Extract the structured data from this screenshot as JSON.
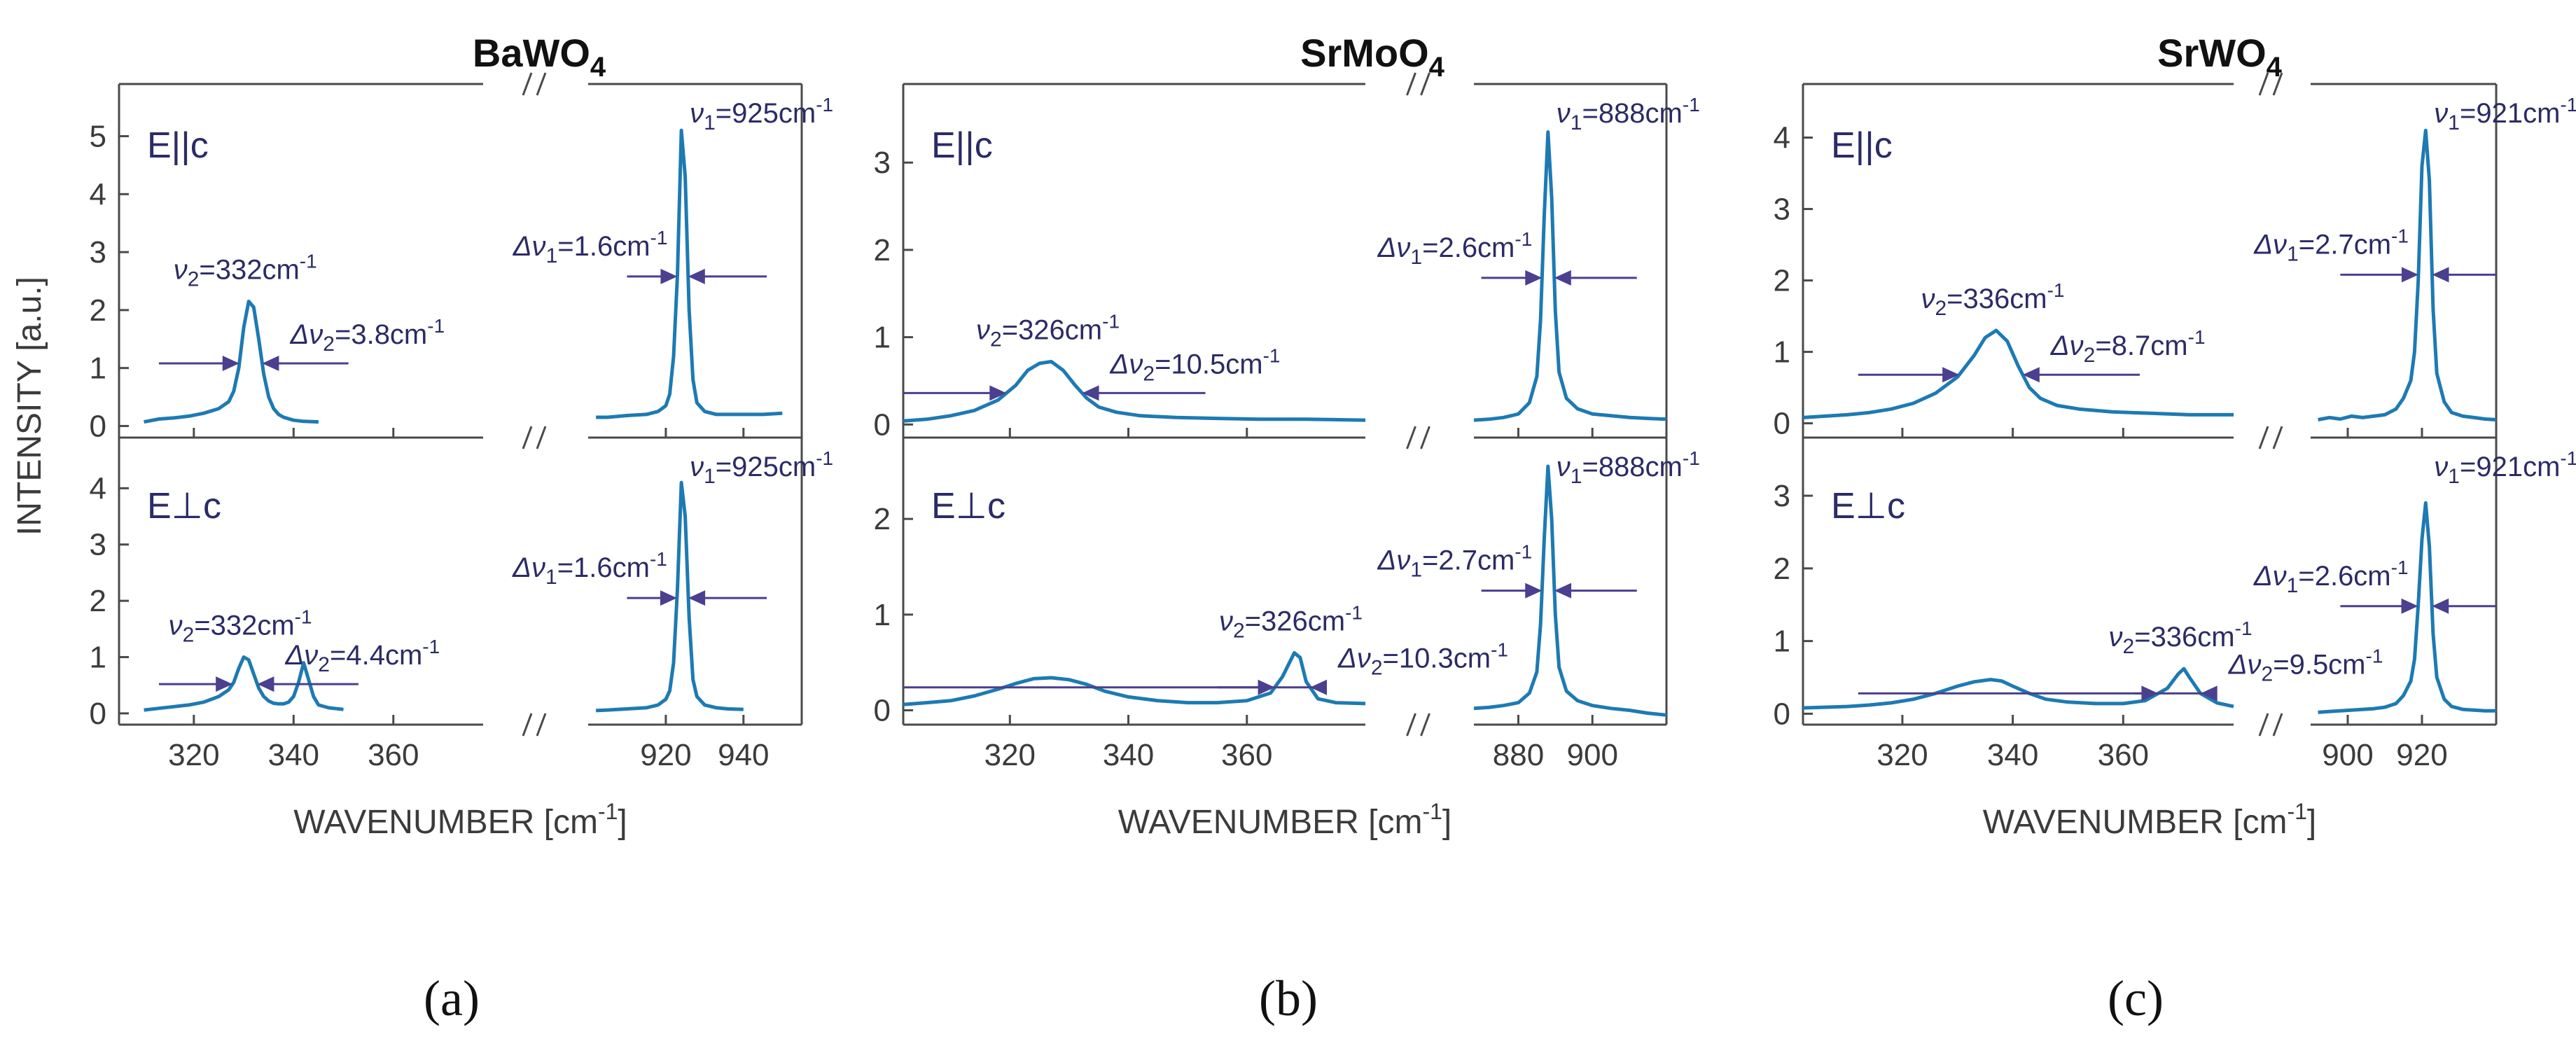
{
  "figure": {
    "ylabel": "INTENSITY [a.u.]",
    "xlabel": "WAVENUMBER [cm",
    "xlabel_sup": "-1",
    "xlabel_end": "]"
  },
  "colors": {
    "curve": "#1d7ab3",
    "annotation": "#2b2b66",
    "arrow": "#4b3f8f"
  },
  "chart_data": [
    {
      "type": "line",
      "panel_label": "(a)",
      "title": "BaWO",
      "title_sub": "4",
      "xlabel": "WAVENUMBER [cm-1]",
      "ylabel": "INTENSITY [a.u.]",
      "left_xlim": [
        305,
        378
      ],
      "left_xticks": [
        "320",
        "340",
        "360"
      ],
      "right_xlim": [
        900,
        955
      ],
      "right_xticks": [
        "920",
        "940"
      ],
      "rows": [
        {
          "polarization": "E||c",
          "ylim": [
            -0.2,
            5.9
          ],
          "yticks": [
            "0",
            "1",
            "2",
            "3",
            "4",
            "5"
          ],
          "left": {
            "peak_label": "ν2=332cm-1",
            "fwhm_label": "Δν2=3.8cm-1",
            "fwhm_level": 1.08,
            "arrow_span": [
              313,
              351
            ],
            "x": [
              310,
              313,
              316,
              319,
              322,
              325,
              327,
              328,
              329,
              330,
              331,
              332,
              333,
              334,
              335,
              336,
              337,
              338,
              340,
              342,
              345
            ],
            "y": [
              0.07,
              0.12,
              0.14,
              0.17,
              0.22,
              0.3,
              0.42,
              0.6,
              1.0,
              1.7,
              2.15,
              2.05,
              1.5,
              0.9,
              0.5,
              0.3,
              0.2,
              0.15,
              0.1,
              0.08,
              0.07
            ]
          },
          "right": {
            "peak_label": "ν1=925cm-1",
            "fwhm_label": "Δν1=1.6cm-1",
            "fwhm_level": 2.58,
            "arrow_span": [
              910,
              946
            ],
            "x": [
              902,
              905,
              910,
              915,
              918,
              920,
              921,
              922,
              923,
              924,
              925,
              926,
              927,
              928,
              930,
              933,
              936,
              940,
              945,
              950
            ],
            "y": [
              0.15,
              0.15,
              0.18,
              0.2,
              0.25,
              0.35,
              0.55,
              1.2,
              2.6,
              5.1,
              4.3,
              2.0,
              0.8,
              0.4,
              0.25,
              0.2,
              0.2,
              0.2,
              0.2,
              0.22
            ]
          }
        },
        {
          "polarization": "E⊥c",
          "ylim": [
            -0.2,
            4.9
          ],
          "yticks": [
            "0",
            "1",
            "2",
            "3",
            "4"
          ],
          "left": {
            "peak_label": "ν2=332cm-1",
            "fwhm_label": "Δν2=4.4cm-1",
            "fwhm_level": 0.52,
            "arrow_span": [
              313,
              353
            ],
            "x": [
              310,
              313,
              316,
              319,
              322,
              325,
              327,
              328,
              329,
              330,
              331,
              332,
              333,
              334,
              335,
              336,
              337,
              338,
              339,
              340,
              341,
              342,
              343,
              344,
              345,
              347,
              350
            ],
            "y": [
              0.06,
              0.09,
              0.12,
              0.15,
              0.2,
              0.3,
              0.42,
              0.55,
              0.8,
              1.0,
              0.95,
              0.7,
              0.45,
              0.3,
              0.22,
              0.18,
              0.17,
              0.17,
              0.2,
              0.3,
              0.55,
              0.9,
              0.6,
              0.3,
              0.15,
              0.1,
              0.07
            ]
          },
          "right": {
            "peak_label": "ν1=925cm-1",
            "fwhm_label": "Δν1=1.6cm-1",
            "fwhm_level": 2.05,
            "arrow_span": [
              910,
              946
            ],
            "x": [
              902,
              905,
              910,
              915,
              918,
              920,
              921,
              922,
              923,
              924,
              925,
              926,
              927,
              928,
              930,
              933,
              936,
              940
            ],
            "y": [
              0.05,
              0.06,
              0.08,
              0.1,
              0.15,
              0.25,
              0.4,
              0.9,
              2.2,
              4.1,
              3.5,
              1.7,
              0.6,
              0.3,
              0.15,
              0.1,
              0.08,
              0.07
            ]
          }
        }
      ]
    },
    {
      "type": "line",
      "panel_label": "(b)",
      "title": "SrMoO",
      "title_sub": "4",
      "xlabel": "WAVENUMBER [cm-1]",
      "ylabel": "",
      "left_xlim": [
        302,
        380
      ],
      "left_xticks": [
        "320",
        "340",
        "360"
      ],
      "right_xlim": [
        868,
        920
      ],
      "right_xticks": [
        "880",
        "900"
      ],
      "rows": [
        {
          "polarization": "E||c",
          "ylim": [
            -0.15,
            3.9
          ],
          "yticks": [
            "0",
            "1",
            "2",
            "3"
          ],
          "left": {
            "peak_label": "ν2=326cm-1",
            "fwhm_label": "Δν2=10.5cm-1",
            "fwhm_level": 0.36,
            "arrow_span": [
              302,
              353
            ],
            "x": [
              302,
              306,
              310,
              314,
              318,
              321,
              323,
              325,
              327,
              329,
              331,
              333,
              335,
              338,
              342,
              348,
              355,
              362,
              370,
              380
            ],
            "y": [
              0.04,
              0.06,
              0.1,
              0.16,
              0.28,
              0.45,
              0.62,
              0.7,
              0.72,
              0.62,
              0.45,
              0.3,
              0.2,
              0.14,
              0.1,
              0.08,
              0.07,
              0.06,
              0.06,
              0.05
            ]
          },
          "right": {
            "peak_label": "ν1=888cm-1",
            "fwhm_label": "Δν1=2.6cm-1",
            "fwhm_level": 1.68,
            "arrow_span": [
              870,
              912
            ],
            "x": [
              868,
              872,
              876,
              880,
              883,
              885,
              886,
              887,
              888,
              889,
              890,
              891,
              893,
              896,
              900,
              905,
              910,
              915,
              920
            ],
            "y": [
              0.05,
              0.06,
              0.08,
              0.12,
              0.25,
              0.55,
              1.2,
              2.4,
              3.35,
              2.6,
              1.3,
              0.6,
              0.3,
              0.18,
              0.12,
              0.1,
              0.08,
              0.07,
              0.06
            ]
          }
        },
        {
          "polarization": "E⊥c",
          "ylim": [
            -0.15,
            2.85
          ],
          "yticks": [
            "0",
            "1",
            "2"
          ],
          "left": {
            "peak_label": "ν2=326cm-1",
            "fwhm_label": "Δν2=10.3cm-1",
            "fwhm_level": 0.24,
            "arrow_span": [
              302,
              355
            ],
            "x": [
              302,
              306,
              310,
              314,
              318,
              321,
              324,
              327,
              330,
              333,
              336,
              340,
              345,
              350,
              355,
              360,
              364,
              366,
              368,
              369,
              370,
              372,
              375,
              380
            ],
            "y": [
              0.06,
              0.08,
              0.1,
              0.15,
              0.22,
              0.28,
              0.33,
              0.34,
              0.32,
              0.27,
              0.2,
              0.14,
              0.1,
              0.08,
              0.08,
              0.1,
              0.18,
              0.35,
              0.6,
              0.55,
              0.3,
              0.12,
              0.08,
              0.07
            ]
          },
          "right": {
            "peak_label": "ν1=888cm-1",
            "fwhm_label": "Δν1=2.7cm-1",
            "fwhm_level": 1.25,
            "arrow_span": [
              870,
              912
            ],
            "x": [
              868,
              872,
              876,
              880,
              883,
              885,
              886,
              887,
              888,
              889,
              890,
              891,
              893,
              896,
              900,
              905,
              910,
              915,
              920
            ],
            "y": [
              0.02,
              0.03,
              0.05,
              0.08,
              0.18,
              0.4,
              0.9,
              1.8,
              2.55,
              2.0,
              1.0,
              0.45,
              0.2,
              0.1,
              0.05,
              0.02,
              0.0,
              -0.03,
              -0.05
            ]
          }
        }
      ]
    },
    {
      "type": "line",
      "panel_label": "(c)",
      "title": "SrWO",
      "title_sub": "4",
      "xlabel": "WAVENUMBER [cm-1]",
      "ylabel": "",
      "left_xlim": [
        302,
        380
      ],
      "left_xticks": [
        "320",
        "340",
        "360"
      ],
      "right_xlim": [
        890,
        940
      ],
      "right_xticks": [
        "900",
        "920"
      ],
      "rows": [
        {
          "polarization": "E||c",
          "ylim": [
            -0.2,
            4.75
          ],
          "yticks": [
            "0",
            "1",
            "2",
            "3",
            "4"
          ],
          "left": {
            "peak_label": "ν2=336cm-1",
            "fwhm_label": "Δν2=8.7cm-1",
            "fwhm_level": 0.68,
            "arrow_span": [
              312,
              363
            ],
            "x": [
              302,
              306,
              310,
              314,
              318,
              322,
              326,
              330,
              333,
              335,
              337,
              339,
              341,
              343,
              345,
              348,
              352,
              358,
              365,
              372,
              380
            ],
            "y": [
              0.08,
              0.1,
              0.12,
              0.15,
              0.2,
              0.28,
              0.42,
              0.65,
              0.95,
              1.2,
              1.3,
              1.15,
              0.8,
              0.5,
              0.35,
              0.25,
              0.2,
              0.16,
              0.14,
              0.12,
              0.12
            ]
          },
          "right": {
            "peak_label": "ν1=921cm-1",
            "fwhm_label": "Δν1=2.7cm-1",
            "fwhm_level": 2.08,
            "arrow_span": [
              898,
              940
            ],
            "x": [
              892,
              895,
              898,
              901,
              904,
              907,
              910,
              913,
              915,
              917,
              918,
              919,
              920,
              921,
              922,
              923,
              924,
              926,
              928,
              931,
              934,
              937,
              940
            ],
            "y": [
              0.05,
              0.08,
              0.06,
              0.1,
              0.08,
              0.1,
              0.12,
              0.2,
              0.35,
              0.6,
              1.0,
              2.0,
              3.6,
              4.1,
              3.4,
              1.6,
              0.7,
              0.3,
              0.15,
              0.1,
              0.08,
              0.06,
              0.05
            ]
          }
        },
        {
          "polarization": "E⊥c",
          "ylim": [
            -0.15,
            3.8
          ],
          "yticks": [
            "0",
            "1",
            "2",
            "3"
          ],
          "left": {
            "peak_label": "ν2=336cm-1",
            "fwhm_label": "Δν2=9.5cm-1",
            "fwhm_level": 0.28,
            "arrow_span": [
              312,
              362
            ],
            "x": [
              302,
              306,
              310,
              314,
              318,
              322,
              326,
              330,
              333,
              336,
              338,
              340,
              343,
              346,
              350,
              355,
              360,
              364,
              368,
              370,
              371,
              372,
              374,
              377,
              380
            ],
            "y": [
              0.08,
              0.09,
              0.1,
              0.12,
              0.15,
              0.2,
              0.28,
              0.38,
              0.44,
              0.47,
              0.45,
              0.38,
              0.28,
              0.2,
              0.16,
              0.14,
              0.14,
              0.18,
              0.35,
              0.55,
              0.62,
              0.5,
              0.28,
              0.15,
              0.1
            ]
          },
          "right": {
            "peak_label": "ν1=921cm-1",
            "fwhm_label": "Δν1=2.6cm-1",
            "fwhm_level": 1.48,
            "arrow_span": [
              898,
              940
            ],
            "x": [
              892,
              895,
              898,
              901,
              904,
              907,
              910,
              913,
              915,
              917,
              918,
              919,
              920,
              921,
              922,
              923,
              924,
              926,
              928,
              931,
              934,
              937,
              940
            ],
            "y": [
              0.02,
              0.03,
              0.04,
              0.05,
              0.06,
              0.07,
              0.09,
              0.14,
              0.25,
              0.45,
              0.75,
              1.5,
              2.4,
              2.9,
              2.3,
              1.1,
              0.5,
              0.2,
              0.1,
              0.06,
              0.05,
              0.04,
              0.04
            ]
          }
        }
      ]
    }
  ]
}
